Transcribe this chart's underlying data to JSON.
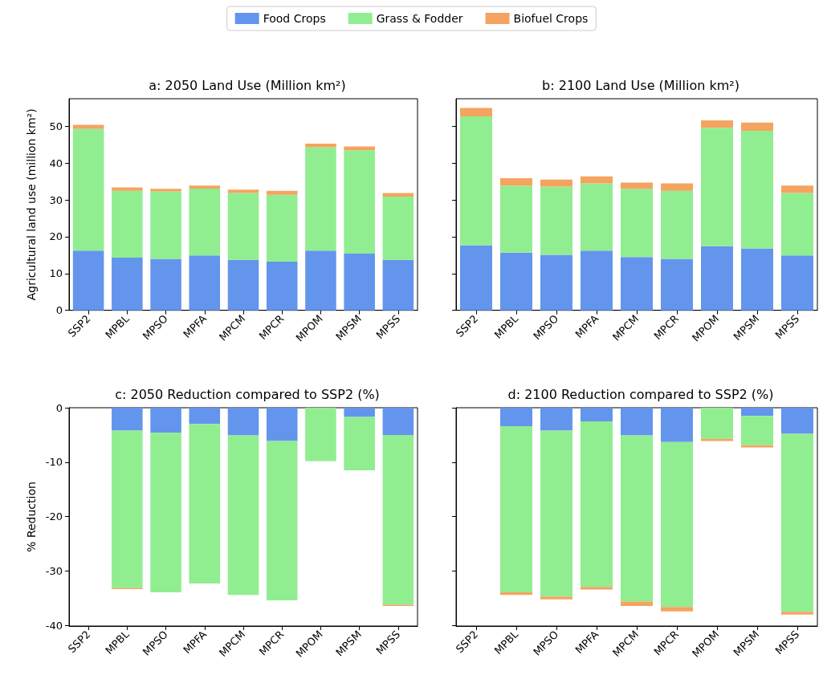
{
  "chart_data": [
    {
      "type": "bar",
      "title": "a: 2050 Land Use (Million km²)",
      "ylabel": "Agricultural land use (million km²)",
      "stacked": true,
      "legend": "top",
      "categories": [
        "SSP2",
        "MPBL",
        "MPSO",
        "MPFA",
        "MPCM",
        "MPCR",
        "MPOM",
        "MPSM",
        "MPSS"
      ],
      "ylim": [
        0,
        57.5
      ],
      "yticks": [
        0,
        10,
        20,
        30,
        40,
        50
      ],
      "series": [
        {
          "name": "Food Crops",
          "color": "#6495ed",
          "values": [
            16.2,
            14.3,
            14.0,
            14.9,
            13.7,
            13.2,
            16.2,
            15.4,
            13.7
          ]
        },
        {
          "name": "Grass & Fodder",
          "color": "#90ee90",
          "values": [
            33.1,
            18.2,
            18.3,
            18.2,
            18.2,
            18.2,
            28.1,
            28.1,
            17.2
          ]
        },
        {
          "name": "Biofuel Crops",
          "color": "#f4a460",
          "values": [
            1.1,
            0.9,
            0.7,
            0.8,
            0.9,
            1.1,
            1.0,
            1.0,
            1.0
          ]
        }
      ]
    },
    {
      "type": "bar",
      "title": "b: 2100 Land Use (Million km²)",
      "stacked": true,
      "tick_labels": "x",
      "categories": [
        "SSP2",
        "MPBL",
        "MPSO",
        "MPFA",
        "MPCM",
        "MPCR",
        "MPOM",
        "MPSM",
        "MPSS"
      ],
      "ylim": [
        0,
        57.5
      ],
      "yticks": [
        0,
        10,
        20,
        30,
        40,
        50
      ],
      "series": [
        {
          "color": "#6495ed",
          "values": [
            17.7,
            15.7,
            15.1,
            16.2,
            14.5,
            14.0,
            17.4,
            16.8,
            14.9
          ]
        },
        {
          "color": "#90ee90",
          "values": [
            35.0,
            18.2,
            18.5,
            18.3,
            18.5,
            18.5,
            32.2,
            32.0,
            17.0
          ]
        },
        {
          "color": "#f4a460",
          "values": [
            2.3,
            2.0,
            1.9,
            1.9,
            1.7,
            2.0,
            2.0,
            2.2,
            2.0
          ]
        }
      ]
    },
    {
      "type": "bar",
      "title": "c: 2050 Reduction compared to SSP2 (%)",
      "ylabel": "% Reduction",
      "stacked": true,
      "categories": [
        "SSP2",
        "MPBL",
        "MPSO",
        "MPFA",
        "MPCM",
        "MPCR",
        "MPOM",
        "MPSM",
        "MPSS"
      ],
      "ylim": [
        -40.1,
        0
      ],
      "yticks": [
        -40,
        -30,
        -20,
        -10,
        0
      ],
      "series": [
        {
          "color": "#6495ed",
          "values": [
            0,
            -4.2,
            -4.6,
            -3.0,
            -5.1,
            -6.1,
            0,
            -1.7,
            -5.0
          ]
        },
        {
          "color": "#90ee90",
          "values": [
            0,
            -28.9,
            -29.3,
            -29.3,
            -29.3,
            -29.3,
            -9.8,
            -9.8,
            -31.2
          ]
        },
        {
          "color": "#f4a460",
          "values": [
            0,
            -0.2,
            0,
            0,
            0,
            0,
            0,
            0,
            -0.2
          ]
        }
      ]
    },
    {
      "type": "bar",
      "title": "d: 2100 Reduction compared to SSP2 (%)",
      "stacked": true,
      "tick_labels": "x",
      "categories": [
        "SSP2",
        "MPBL",
        "MPSO",
        "MPFA",
        "MPCM",
        "MPCR",
        "MPOM",
        "MPSM",
        "MPSS"
      ],
      "ylim": [
        -40.1,
        0
      ],
      "yticks": [
        -40,
        -30,
        -20,
        -10,
        0
      ],
      "series": [
        {
          "color": "#6495ed",
          "values": [
            0,
            -3.4,
            -4.2,
            -2.5,
            -5.1,
            -6.3,
            0,
            -1.5,
            -4.8
          ]
        },
        {
          "color": "#90ee90",
          "values": [
            0,
            -30.5,
            -30.5,
            -30.4,
            -30.5,
            -30.3,
            -5.7,
            -5.4,
            -32.7
          ]
        },
        {
          "color": "#f4a460",
          "values": [
            0,
            -0.5,
            -0.5,
            -0.5,
            -0.8,
            -0.8,
            -0.4,
            -0.4,
            -0.5
          ]
        }
      ]
    }
  ]
}
